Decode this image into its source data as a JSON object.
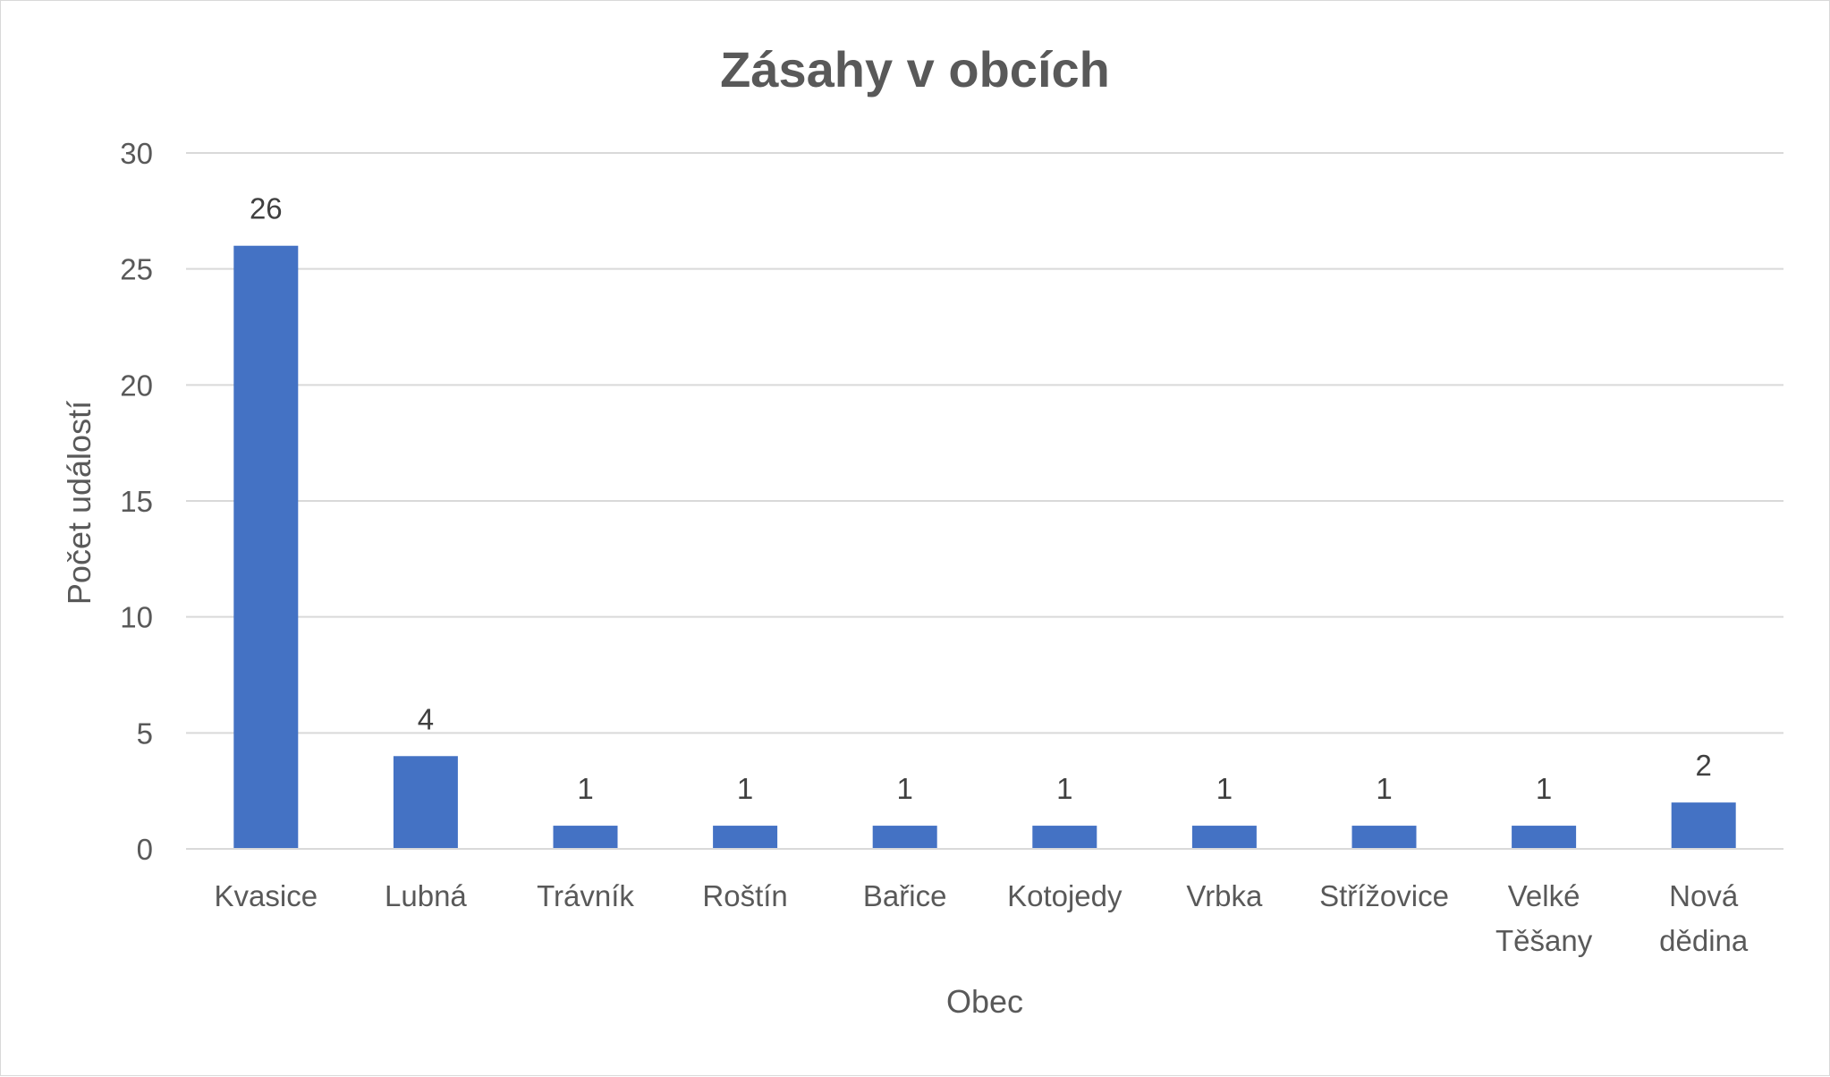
{
  "chart_data": {
    "type": "bar",
    "title": "Zásahy v obcích",
    "xlabel": "Obec",
    "ylabel": "Počet událostí",
    "categories": [
      "Kvasice",
      "Lubná",
      "Trávník",
      "Roštín",
      "Bařice",
      "Kotojedy",
      "Vrbka",
      "Střížovice",
      "Velké Těšany",
      "Nová dědina"
    ],
    "values": [
      26,
      4,
      1,
      1,
      1,
      1,
      1,
      1,
      1,
      2
    ],
    "ylim": [
      0,
      30
    ],
    "yticks": [
      0,
      5,
      10,
      15,
      20,
      25,
      30
    ],
    "grid": true,
    "legend": "none",
    "data_labels": true,
    "bar_color": "#4472c4"
  }
}
